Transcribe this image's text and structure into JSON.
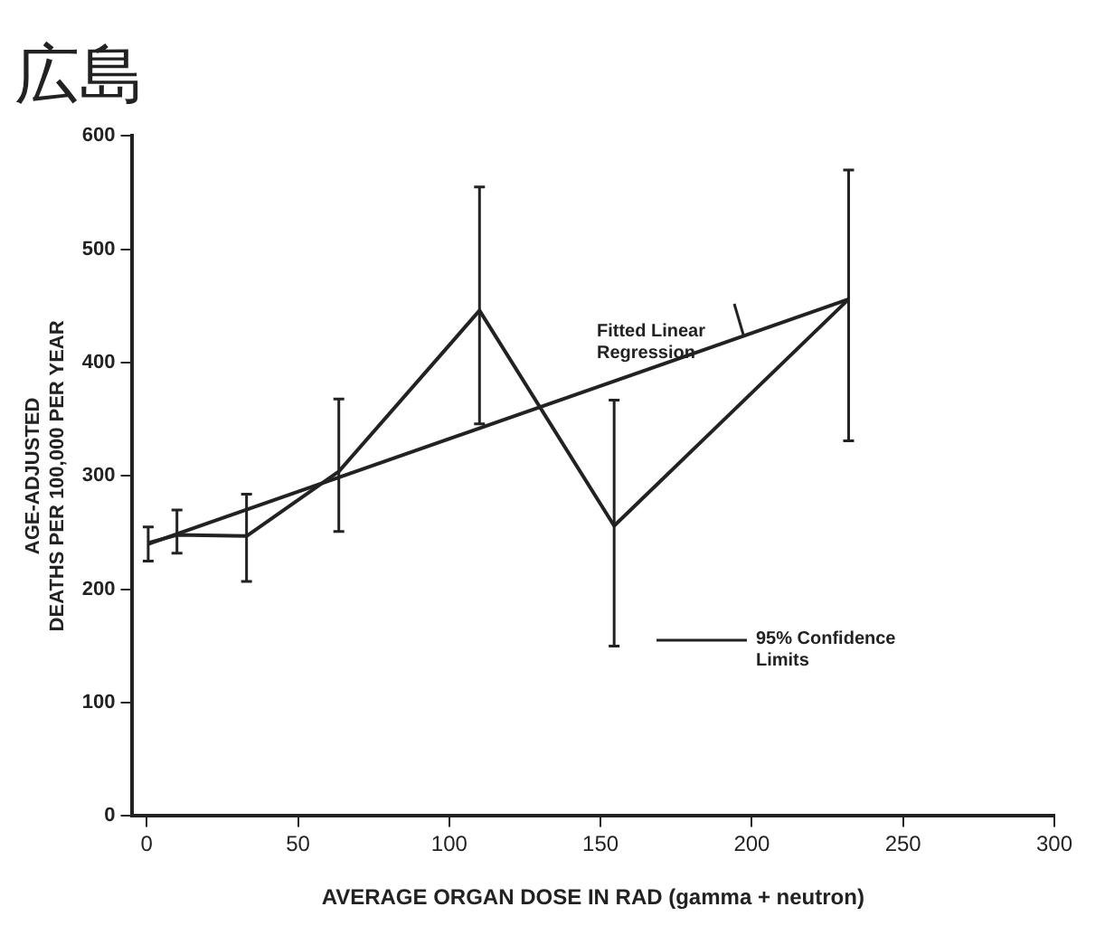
{
  "chart_data": {
    "type": "line",
    "title": "広島",
    "xlabel": "AVERAGE ORGAN DOSE IN RAD (gamma + neutron)",
    "ylabel": "AGE-ADJUSTED\nDEATHS PER 100,000 PER YEAR",
    "series": [
      {
        "type": "line",
        "color": "#222222",
        "x": [
          0.5,
          10,
          33,
          63.5,
          110,
          154.5,
          232
        ],
        "values": [
          241,
          248,
          247,
          304,
          446,
          256,
          456
        ],
        "errors": [
          [
            225,
            255
          ],
          [
            232,
            270
          ],
          [
            207,
            284
          ],
          [
            251,
            368
          ],
          [
            346,
            555
          ],
          [
            150,
            367
          ],
          [
            331,
            570
          ]
        ]
      },
      {
        "type": "line",
        "color": "#222222",
        "x": [
          0.5,
          232
        ],
        "values": [
          240,
          456
        ]
      }
    ],
    "annotations": [
      "Fitted Linear Regression",
      "95% Confidence Limits"
    ],
    "xlim": [
      -5,
      300
    ],
    "xticks": [
      0,
      50,
      100,
      150,
      200,
      250,
      300
    ],
    "ylim": [
      0,
      600
    ],
    "yticks": [
      0,
      100,
      200,
      300,
      400,
      500,
      600
    ],
    "grid": false,
    "legend": false,
    "marker": "none",
    "line_style": "solid"
  }
}
